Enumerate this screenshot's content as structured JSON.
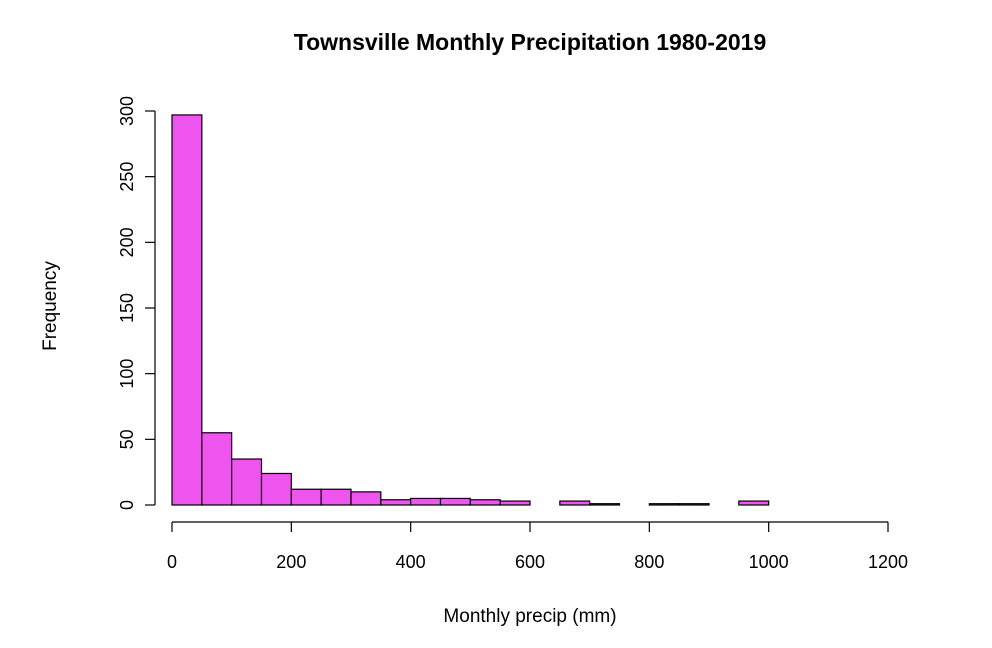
{
  "chart_data": {
    "type": "bar",
    "title": "Townsville Monthly Precipitation 1980-2019",
    "xlabel": "Monthly precip (mm)",
    "ylabel": "Frequency",
    "bin_width": 50,
    "bins": [
      {
        "start": 0,
        "end": 50,
        "count": 297
      },
      {
        "start": 50,
        "end": 100,
        "count": 55
      },
      {
        "start": 100,
        "end": 150,
        "count": 35
      },
      {
        "start": 150,
        "end": 200,
        "count": 24
      },
      {
        "start": 200,
        "end": 250,
        "count": 12
      },
      {
        "start": 250,
        "end": 300,
        "count": 12
      },
      {
        "start": 300,
        "end": 350,
        "count": 10
      },
      {
        "start": 350,
        "end": 400,
        "count": 4
      },
      {
        "start": 400,
        "end": 450,
        "count": 5
      },
      {
        "start": 450,
        "end": 500,
        "count": 5
      },
      {
        "start": 500,
        "end": 550,
        "count": 4
      },
      {
        "start": 550,
        "end": 600,
        "count": 3
      },
      {
        "start": 600,
        "end": 650,
        "count": 0
      },
      {
        "start": 650,
        "end": 700,
        "count": 3
      },
      {
        "start": 700,
        "end": 750,
        "count": 1
      },
      {
        "start": 750,
        "end": 800,
        "count": 0
      },
      {
        "start": 800,
        "end": 850,
        "count": 1
      },
      {
        "start": 850,
        "end": 900,
        "count": 1
      },
      {
        "start": 900,
        "end": 950,
        "count": 0
      },
      {
        "start": 950,
        "end": 1000,
        "count": 3
      },
      {
        "start": 1000,
        "end": 1050,
        "count": 0
      },
      {
        "start": 1050,
        "end": 1100,
        "count": 0
      },
      {
        "start": 1100,
        "end": 1150,
        "count": 0
      },
      {
        "start": 1150,
        "end": 1200,
        "count": 0
      }
    ],
    "xlim": [
      0,
      1200
    ],
    "ylim": [
      0,
      300
    ],
    "x_ticks": [
      0,
      200,
      400,
      600,
      800,
      1000,
      1200
    ],
    "x_tick_labels": [
      "0",
      "200",
      "400",
      "600",
      "800",
      "1000",
      "1200"
    ],
    "y_ticks": [
      0,
      50,
      100,
      150,
      200,
      250,
      300
    ],
    "y_tick_labels": [
      "0",
      "50",
      "100",
      "150",
      "200",
      "250",
      "300"
    ],
    "grid": false,
    "colors": {
      "bar_fill": "#ee55ee",
      "bar_border": "#000000"
    }
  }
}
